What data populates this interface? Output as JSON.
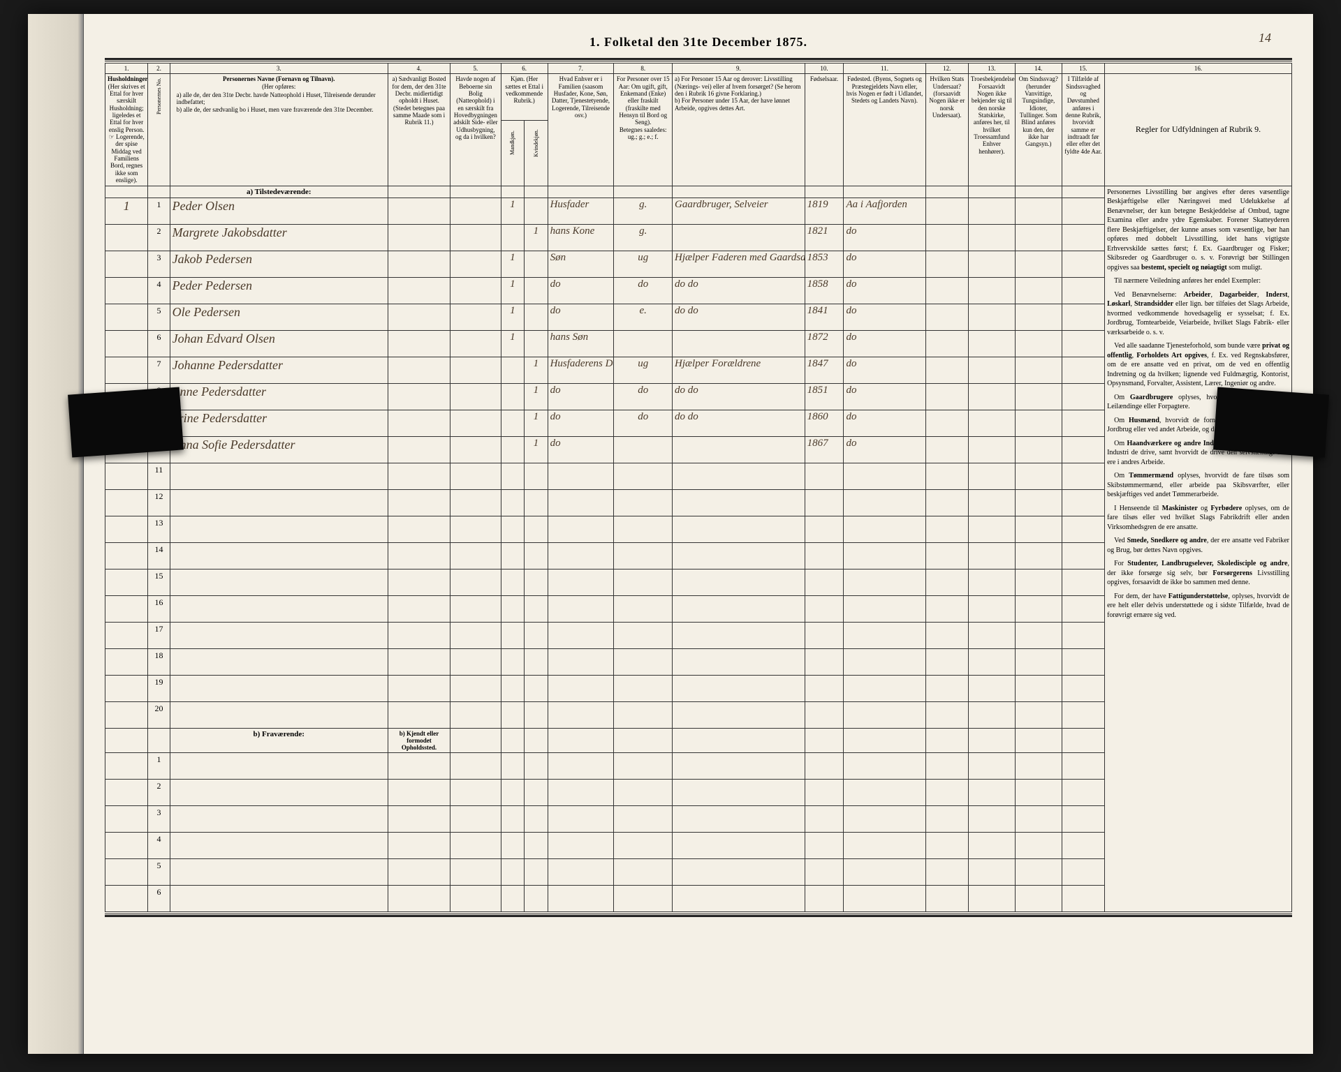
{
  "page": {
    "number": "14",
    "title": "1.  Folketal den 31te December 1875."
  },
  "columns": {
    "nums": [
      "1.",
      "2.",
      "3.",
      "4.",
      "5.",
      "6.",
      "7.",
      "8.",
      "9.",
      "10.",
      "11.",
      "12.",
      "13.",
      "14.",
      "15.",
      "16."
    ],
    "h1": "Husholdninger.",
    "h1_sub": "(Her skrives et Ettal for hver særskilt Husholdning; ligeledes et Ettal for hver enslig Person.",
    "h1_note": "☞ Logerende, der spise Middag ved Familiens Bord, regnes ikke som enslige).",
    "h2": "Personernes No.",
    "h3": "Personernes Navne (Fornavn og Tilnavn).",
    "h3_sub": "(Her opføres:",
    "h3_a": "a) alle de, der den 31te Decbr. havde Natteophold i Huset, Tilreisende derunder indbefattet;",
    "h3_b": "b) alle de, der sædvanlig bo i Huset, men vare fraværende den 31te December.",
    "h4": "a) Sædvanligt Bosted for dem, der den 31te Decbr. midlertidigt opholdt i Huset. (Stedet betegnes paa samme Maade som i Rubrik 11.)",
    "h5": "Havde nogen af Beboerne sin Bolig (Natteophold) i en særskilt fra Hovedbygningen adskilt Side- eller Udhusbygning, og da i hvilken?",
    "h6": "Kjøn. (Her sættes et Ettal i vedkommende Rubrik.)",
    "h6a": "Mandkjøn.",
    "h6b": "Kvindekjøn.",
    "h7": "Hvad Enhver er i Familien (saasom Husfader, Kone, Søn, Datter, Tjenestetyende, Logerende, Tilreisende osv.)",
    "h8": "For Personer over 15 Aar: Om ugift, gift, Enkemand (Enke) eller fraskilt (fraskilte med Hensyn til Bord og Seng).",
    "h8_sub": "Betegnes saaledes: ug.; g.; e.; f.",
    "h9": "a) For Personer 15 Aar og derover: Livsstilling (Nærings- vei) eller af hvem forsørget? (Se herom den i Rubrik 16 givne Forklaring.)",
    "h9_b": "b) For Personer under 15 Aar, der have lønnet Arbeide, opgives dettes Art.",
    "h10": "Fødselsaar.",
    "h11": "Fødested. (Byens, Sognets og Præstegjeldets Navn eller, hvis Nogen er født i Udlandet, Stedets og Landets Navn).",
    "h12": "Hvilken Stats Undersaat? (forsaavidt Nogen ikke er norsk Undersaat).",
    "h13": "Troesbekjendelse. Forsaavidt Nogen ikke bekjender sig til den norske Statskirke, anføres her, til hvilket Troessamfund Enhver henhører).",
    "h14": "Om Sindssvag? (herunder Vanvittige, Tungsindige, Idioter, Tullinger. Som Blind anføres kun den, der ikke har Gangsyn.)",
    "h15": "I Tilfælde af Sindssvaghed og Døvstumhed anføres i denne Rubrik, hvorvidt samme er indtraadt før eller efter det fyldte 4de Aar.",
    "h16": "Regler for Udfyldningen af Rubrik 9."
  },
  "sections": {
    "present": "a) Tilstedeværende:",
    "absent": "b) Fraværende:",
    "absent_col4": "b) Kjendt eller formodet Opholdssted."
  },
  "rows": [
    {
      "hh": "1",
      "n": "1",
      "name": "Peder Olsen",
      "c6a": "1",
      "c7": "Husfader",
      "c8": "g.",
      "c9": "Gaardbruger, Selveier",
      "c10": "1819",
      "c11": "Aa i Aafjorden"
    },
    {
      "n": "2",
      "name": "Margrete Jakobsdatter",
      "c6b": "1",
      "c7": "hans Kone",
      "c8": "g.",
      "c10": "1821",
      "c11": "do"
    },
    {
      "n": "3",
      "name": "Jakob Pedersen",
      "c6a": "1",
      "c7": "Søn",
      "c8": "ug",
      "c9": "Hjælper Faderen med Gaardsarb.",
      "c10": "1853",
      "c11": "do"
    },
    {
      "n": "4",
      "name": "Peder Pedersen",
      "c6a": "1",
      "c7": "do",
      "c8": "do",
      "c9": "do    do",
      "c10": "1858",
      "c11": "do"
    },
    {
      "n": "5",
      "name": "Ole Pedersen",
      "c6a": "1",
      "c7": "do",
      "c8": "e.",
      "c9": "do    do",
      "c10": "1841",
      "c11": "do"
    },
    {
      "n": "6",
      "name": "Johan Edvard Olsen",
      "c6a": "1",
      "c7": "hans Søn",
      "c10": "1872",
      "c11": "do"
    },
    {
      "n": "7",
      "name": "Johanne Pedersdatter",
      "c6b": "1",
      "c7": "Husfaderens Datter",
      "c8": "ug",
      "c9": "Hjælper Forældrene",
      "c10": "1847",
      "c11": "do"
    },
    {
      "n": "8",
      "name": "Anne Pedersdatter",
      "c6b": "1",
      "c7": "do",
      "c8": "do",
      "c9": "do    do",
      "c10": "1851",
      "c11": "do"
    },
    {
      "n": "9",
      "name": "Trine Pedersdatter",
      "c6b": "1",
      "c7": "do",
      "c8": "do",
      "c9": "do    do",
      "c10": "1860",
      "c11": "do"
    },
    {
      "n": "10",
      "name": "Anna Sofie Pedersdatter",
      "c6b": "1",
      "c7": "do",
      "c10": "1867",
      "c11": "do"
    }
  ],
  "empty_present": [
    "11",
    "12",
    "13",
    "14",
    "15",
    "16",
    "17",
    "18",
    "19",
    "20"
  ],
  "empty_absent": [
    "1",
    "2",
    "3",
    "4",
    "5",
    "6"
  ],
  "instructions": {
    "p1": "Personernes Livsstilling bør angives efter deres væsentlige Beskjæftigelse eller Næringsvei med Udelukkelse af Benævnelser, der kun betegne Beskjeddelse af Ombud, tagne Examina eller andre ydre Egenskaber. Forener Skatteyderen flere Beskjæftigelser, der kunne anses som væsentlige, bør han opføres med dobbelt Livsstilling, idet hans vigtigste Erhvervskilde sættes først; f. Ex. Gaardbruger og Fisker; Skibsreder og Gaardbruger o. s. v. Forøvrigt bør Stillingen opgives saa bestemt, specielt og nøiagtigt som muligt.",
    "p2": "Til nærmere Veiledning anføres her endel Exempler:",
    "p3": "Ved Benævnelserne: Arbeider, Dagarbeider, Inderst, Løskarl, Strandsidder eller lign. bør tilføies det Slags Arbeide, hvormed vedkommende hovedsagelig er sysselsat; f. Ex. Jordbrug, Tomtearbeide, Veiarbeide, hvilket Slags Fabrik- eller værksarbeide o. s. v.",
    "p4": "Ved alle saadanne Tjenesteforhold, som bunde være privat og offentlig, Forholdets Art opgives, f. Ex. ved Regnskabsfører, om de ere ansatte ved en privat, om de ved en offentlig Indretning og da hvilken; lignende ved Fuldmægtig, Kontorist, Opsynsmand, Forvalter, Assistent, Lærer, Ingeniør og andre.",
    "p5": "Om Gaardbrugere oplyses, hvorvidt de ere Selveiere, Leilændinge eller Forpagtere.",
    "p6": "Om Husmænd, hvorvidt de fornemmelig ernære sig ved Jordbrug eller ved andet Arbeide, og da af hvad Slags.",
    "p7": "Om Haandværkere og andre Industridrivende, hvad Slags Industri de drive, samt hvorvidt de drive den selvstændigt eller ere i andres Arbeide.",
    "p8": "Om Tømmermænd oplyses, hvorvidt de fare tilsøs som Skibstømmermænd, eller arbeide paa Skibsværfter, eller beskjæftiges ved andet Tømmerarbeide.",
    "p9": "I Henseende til Maskinister og Fyrbødere oplyses, om de fare tilsøs eller ved hvilket Slags Fabrikdrift eller anden Virksomhedsgren de ere ansatte.",
    "p10": "Ved Smede, Snedkere og andre, der ere ansatte ved Fabriker og Brug, bør dettes Navn opgives.",
    "p11": "For Studenter, Landbrugselever, Skoledisciple og andre, der ikke forsørge sig selv, bør Forsørgerens Livsstilling opgives, forsaavidt de ikke bo sammen med denne.",
    "p12": "For dem, der have Fattigunderstøttelse, oplyses, hvorvidt de ere helt eller delvis understøttede og i sidste Tilfælde, hvad de forøvrigt ernære sig ved."
  },
  "colors": {
    "paper": "#f4f0e6",
    "ink": "#222222",
    "handwriting": "#4a3a2a",
    "border": "#333333"
  }
}
